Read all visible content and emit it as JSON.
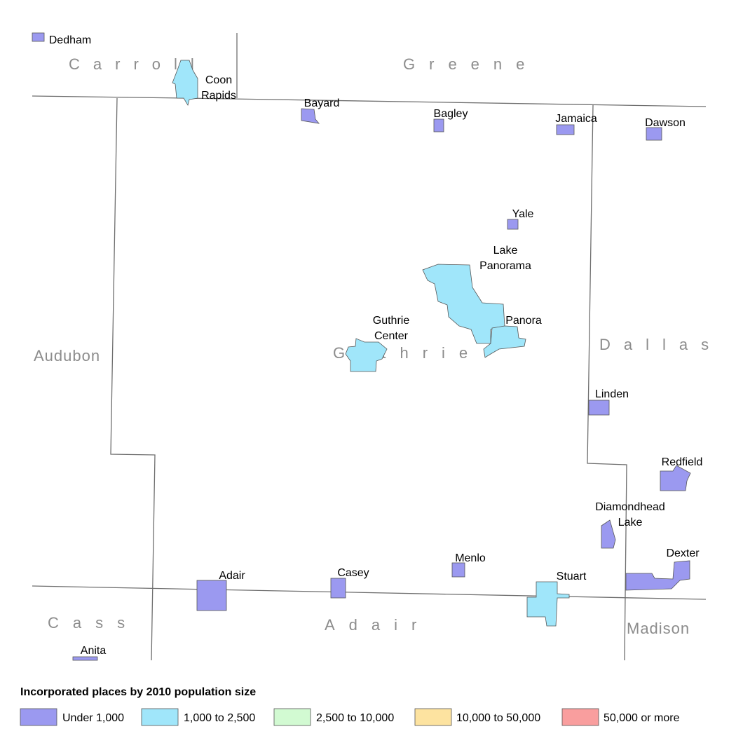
{
  "counties": [
    {
      "name": "Carroll"
    },
    {
      "name": "Greene"
    },
    {
      "name": "Audubon"
    },
    {
      "name": "Guthrie"
    },
    {
      "name": "Dallas"
    },
    {
      "name": "Cass"
    },
    {
      "name": "Adair"
    },
    {
      "name": "Madison"
    }
  ],
  "places": [
    {
      "label": [
        "Dedham"
      ]
    },
    {
      "label": [
        "Coon",
        "Rapids"
      ]
    },
    {
      "label": [
        "Bayard"
      ]
    },
    {
      "label": [
        "Bagley"
      ]
    },
    {
      "label": [
        "Jamaica"
      ]
    },
    {
      "label": [
        "Dawson"
      ]
    },
    {
      "label": [
        "Yale"
      ]
    },
    {
      "label": [
        "Lake",
        "Panorama"
      ]
    },
    {
      "label": [
        "Panora"
      ]
    },
    {
      "label": [
        "Guthrie",
        "Center"
      ]
    },
    {
      "label": [
        "Linden"
      ]
    },
    {
      "label": [
        "Redfield"
      ]
    },
    {
      "label": [
        "Diamondhead",
        "Lake"
      ]
    },
    {
      "label": [
        "Dexter"
      ]
    },
    {
      "label": [
        "Adair"
      ]
    },
    {
      "label": [
        "Casey"
      ]
    },
    {
      "label": [
        "Menlo"
      ]
    },
    {
      "label": [
        "Stuart"
      ]
    },
    {
      "label": [
        "Anita"
      ]
    }
  ],
  "legend": {
    "title": "Incorporated places by 2010 population size",
    "items": [
      {
        "label": "Under 1,000",
        "color": "#9b99f0"
      },
      {
        "label": "1,000 to 2,500",
        "color": "#a0e6fa"
      },
      {
        "label": "2,500 to 10,000",
        "color": "#d2fad2"
      },
      {
        "label": "10,000 to 50,000",
        "color": "#fde3a0"
      },
      {
        "label": "50,000 or more",
        "color": "#f99e9e"
      }
    ]
  }
}
